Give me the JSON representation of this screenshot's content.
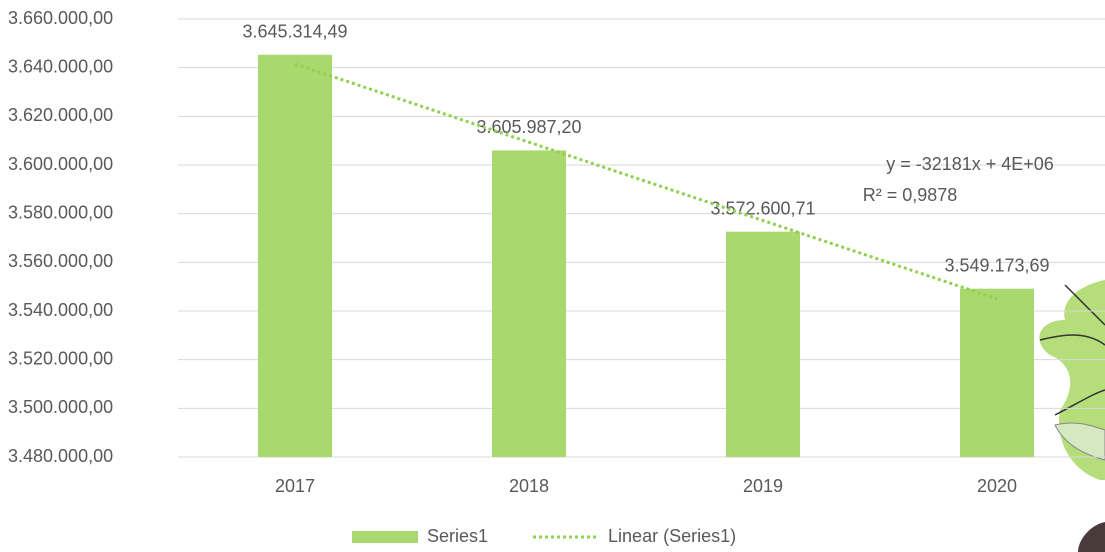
{
  "chart_data": {
    "type": "bar",
    "categories": [
      "2017",
      "2018",
      "2019",
      "2020"
    ],
    "series": [
      {
        "name": "Series1",
        "color": "#a9d86e",
        "values": [
          3645314.49,
          3605987.2,
          3572600.71,
          3549173.69
        ],
        "value_labels": [
          "3.645.314,49",
          "3.605.987,20",
          "3.572.600,71",
          "3.549.173,69"
        ]
      },
      {
        "name": "Linear (Series1)",
        "type": "line",
        "style": "dotted",
        "color": "#92d050",
        "values": [
          3641540,
          3609360,
          3577179,
          3544998
        ]
      }
    ],
    "annotations": [
      "y = -32181x + 4E+06",
      "R² = 0,9878"
    ],
    "ylim": [
      3480000,
      3660000
    ],
    "yticks": [
      {
        "value": 3480000,
        "label": "3.480.000,00"
      },
      {
        "value": 3500000,
        "label": "3.500.000,00"
      },
      {
        "value": 3520000,
        "label": "3.520.000,00"
      },
      {
        "value": 3540000,
        "label": "3.540.000,00"
      },
      {
        "value": 3560000,
        "label": "3.560.000,00"
      },
      {
        "value": 3580000,
        "label": "3.580.000,00"
      },
      {
        "value": 3600000,
        "label": "3.600.000,00"
      },
      {
        "value": 3620000,
        "label": "3.620.000,00"
      },
      {
        "value": 3640000,
        "label": "3.640.000,00"
      },
      {
        "value": 3660000,
        "label": "3.660.000,00"
      }
    ],
    "grid": true,
    "legend": "bottom"
  }
}
